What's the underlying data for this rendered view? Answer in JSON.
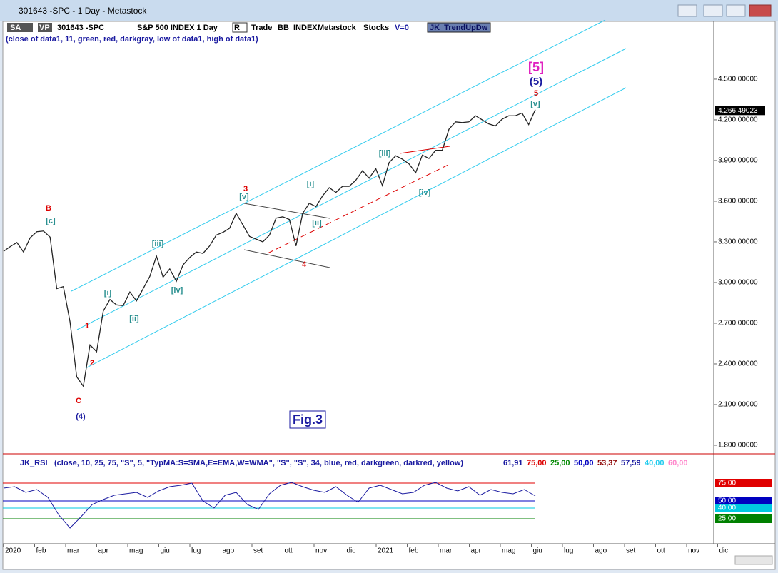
{
  "window": {
    "title": "301643 -SPC - 1 Day - Metastock"
  },
  "toolbar": {
    "items": [
      "SA",
      "VP",
      "301643 -SPC",
      "S&P 500 INDEX 1 Day",
      "R",
      "Trade",
      "BB_INDEX",
      "Metastock",
      "Stocks",
      "V=0",
      "JK_TrendUpDw"
    ],
    "params": "(close of data1, 11, green, red, darkgray, low of data1, high of data1)"
  },
  "price_chart": {
    "ylim": [
      1742,
      4926
    ],
    "yticks": [
      {
        "value": 4500,
        "label": "4.500,00000"
      },
      {
        "value": 4200,
        "label": "4.200,00000"
      },
      {
        "value": 3900,
        "label": "3.900,00000"
      },
      {
        "value": 3600,
        "label": "3.600,00000"
      },
      {
        "value": 3300,
        "label": "3.300,00000"
      },
      {
        "value": 3000,
        "label": "3.000,00000"
      },
      {
        "value": 2700,
        "label": "2.700,00000"
      },
      {
        "value": 2400,
        "label": "2.400,00000"
      },
      {
        "value": 2100,
        "label": "2.100,00000"
      },
      {
        "value": 1800,
        "label": "1.800,00000"
      }
    ],
    "last_price": {
      "value": 4266.49023,
      "label": "4.266,49023"
    },
    "values": [
      3230,
      3265,
      3295,
      3225,
      3330,
      3375,
      3380,
      3335,
      2955,
      2970,
      2710,
      2305,
      2235,
      2540,
      2490,
      2790,
      2875,
      2835,
      2830,
      2930,
      2865,
      2955,
      3045,
      3195,
      3040,
      3100,
      3010,
      3130,
      3185,
      3225,
      3215,
      3270,
      3350,
      3370,
      3400,
      3510,
      3425,
      3340,
      3320,
      3300,
      3350,
      3475,
      3485,
      3465,
      3270,
      3510,
      3585,
      3560,
      3640,
      3700,
      3665,
      3710,
      3710,
      3755,
      3825,
      3770,
      3840,
      3715,
      3885,
      3935,
      3910,
      3875,
      3810,
      3940,
      3915,
      3975,
      3975,
      4130,
      4185,
      4180,
      4185,
      4230,
      4200,
      4170,
      4155,
      4205,
      4230,
      4230,
      4250,
      4165,
      4275
    ],
    "wave_labels": [
      "B",
      "[c]",
      "C",
      "(4)",
      "1",
      "2",
      "[i]",
      "[ii]",
      "[iii]",
      "[iv]",
      "3",
      "[v]",
      "4",
      "[i]",
      "[ii]",
      "[iii]",
      "[iv]",
      "[v]",
      "5",
      "(5)",
      "[5]"
    ],
    "figure_label": "Fig.3"
  },
  "months": [
    "2020",
    "feb",
    "mar",
    "apr",
    "mag",
    "giu",
    "lug",
    "ago",
    "set",
    "ott",
    "nov",
    "dic",
    "2021",
    "feb",
    "mar",
    "apr",
    "mag",
    "giu",
    "lug",
    "ago",
    "set",
    "ott",
    "nov",
    "dic"
  ],
  "rsi_panel": {
    "name": "JK_RSI",
    "params": "(close, 10, 25, 75, \"S\", 5, \"TypMA:S=SMA,E=EMA,W=WMA\", \"S\", \"S\", 34, blue, red, darkgreen, darkred, yellow)",
    "readouts": [
      "61,91",
      "75,00",
      "25,00",
      "50,00",
      "53,37",
      "57,59",
      "40,00",
      "60,00"
    ],
    "ylim": [
      0,
      92
    ],
    "levels": [
      {
        "value": 75,
        "label": "75,00",
        "color": "#e00000"
      },
      {
        "value": 50,
        "label": "50,00",
        "color": "#0000c0"
      },
      {
        "value": 40,
        "label": "40,00",
        "color": "#00c8e0"
      },
      {
        "value": 25,
        "label": "25,00",
        "color": "#008000"
      }
    ],
    "values": [
      68,
      70,
      62,
      66,
      55,
      30,
      12,
      28,
      45,
      52,
      58,
      60,
      62,
      55,
      64,
      70,
      72,
      75,
      50,
      40,
      58,
      62,
      45,
      38,
      60,
      72,
      76,
      70,
      65,
      62,
      70,
      58,
      48,
      68,
      72,
      66,
      60,
      62,
      72,
      76,
      68,
      64,
      70,
      58,
      66,
      62,
      60,
      66,
      57
    ]
  }
}
